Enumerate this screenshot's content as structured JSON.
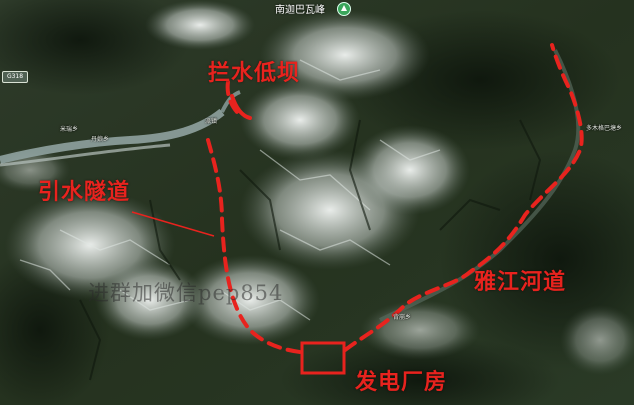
{
  "map": {
    "peak_label": "南迦巴瓦峰",
    "road_badge": "G318",
    "place_names": [
      "米瑞乡",
      "丹娘乡",
      "派镇",
      "背崩乡",
      "多木格巴塘乡"
    ],
    "watermark": "进群加微信pep854"
  },
  "annotations": {
    "dam": "拦水低坝",
    "tunnel": "引水隧道",
    "river": "雅江河道",
    "powerhouse": "发电厂房"
  },
  "colors": {
    "annotation": "#e8231e",
    "river_water": "#8fa2a0",
    "terrain_dark": "#1b2618",
    "snow": "#eef2f0"
  },
  "icons": {
    "peak": "mountain-pin-icon"
  }
}
